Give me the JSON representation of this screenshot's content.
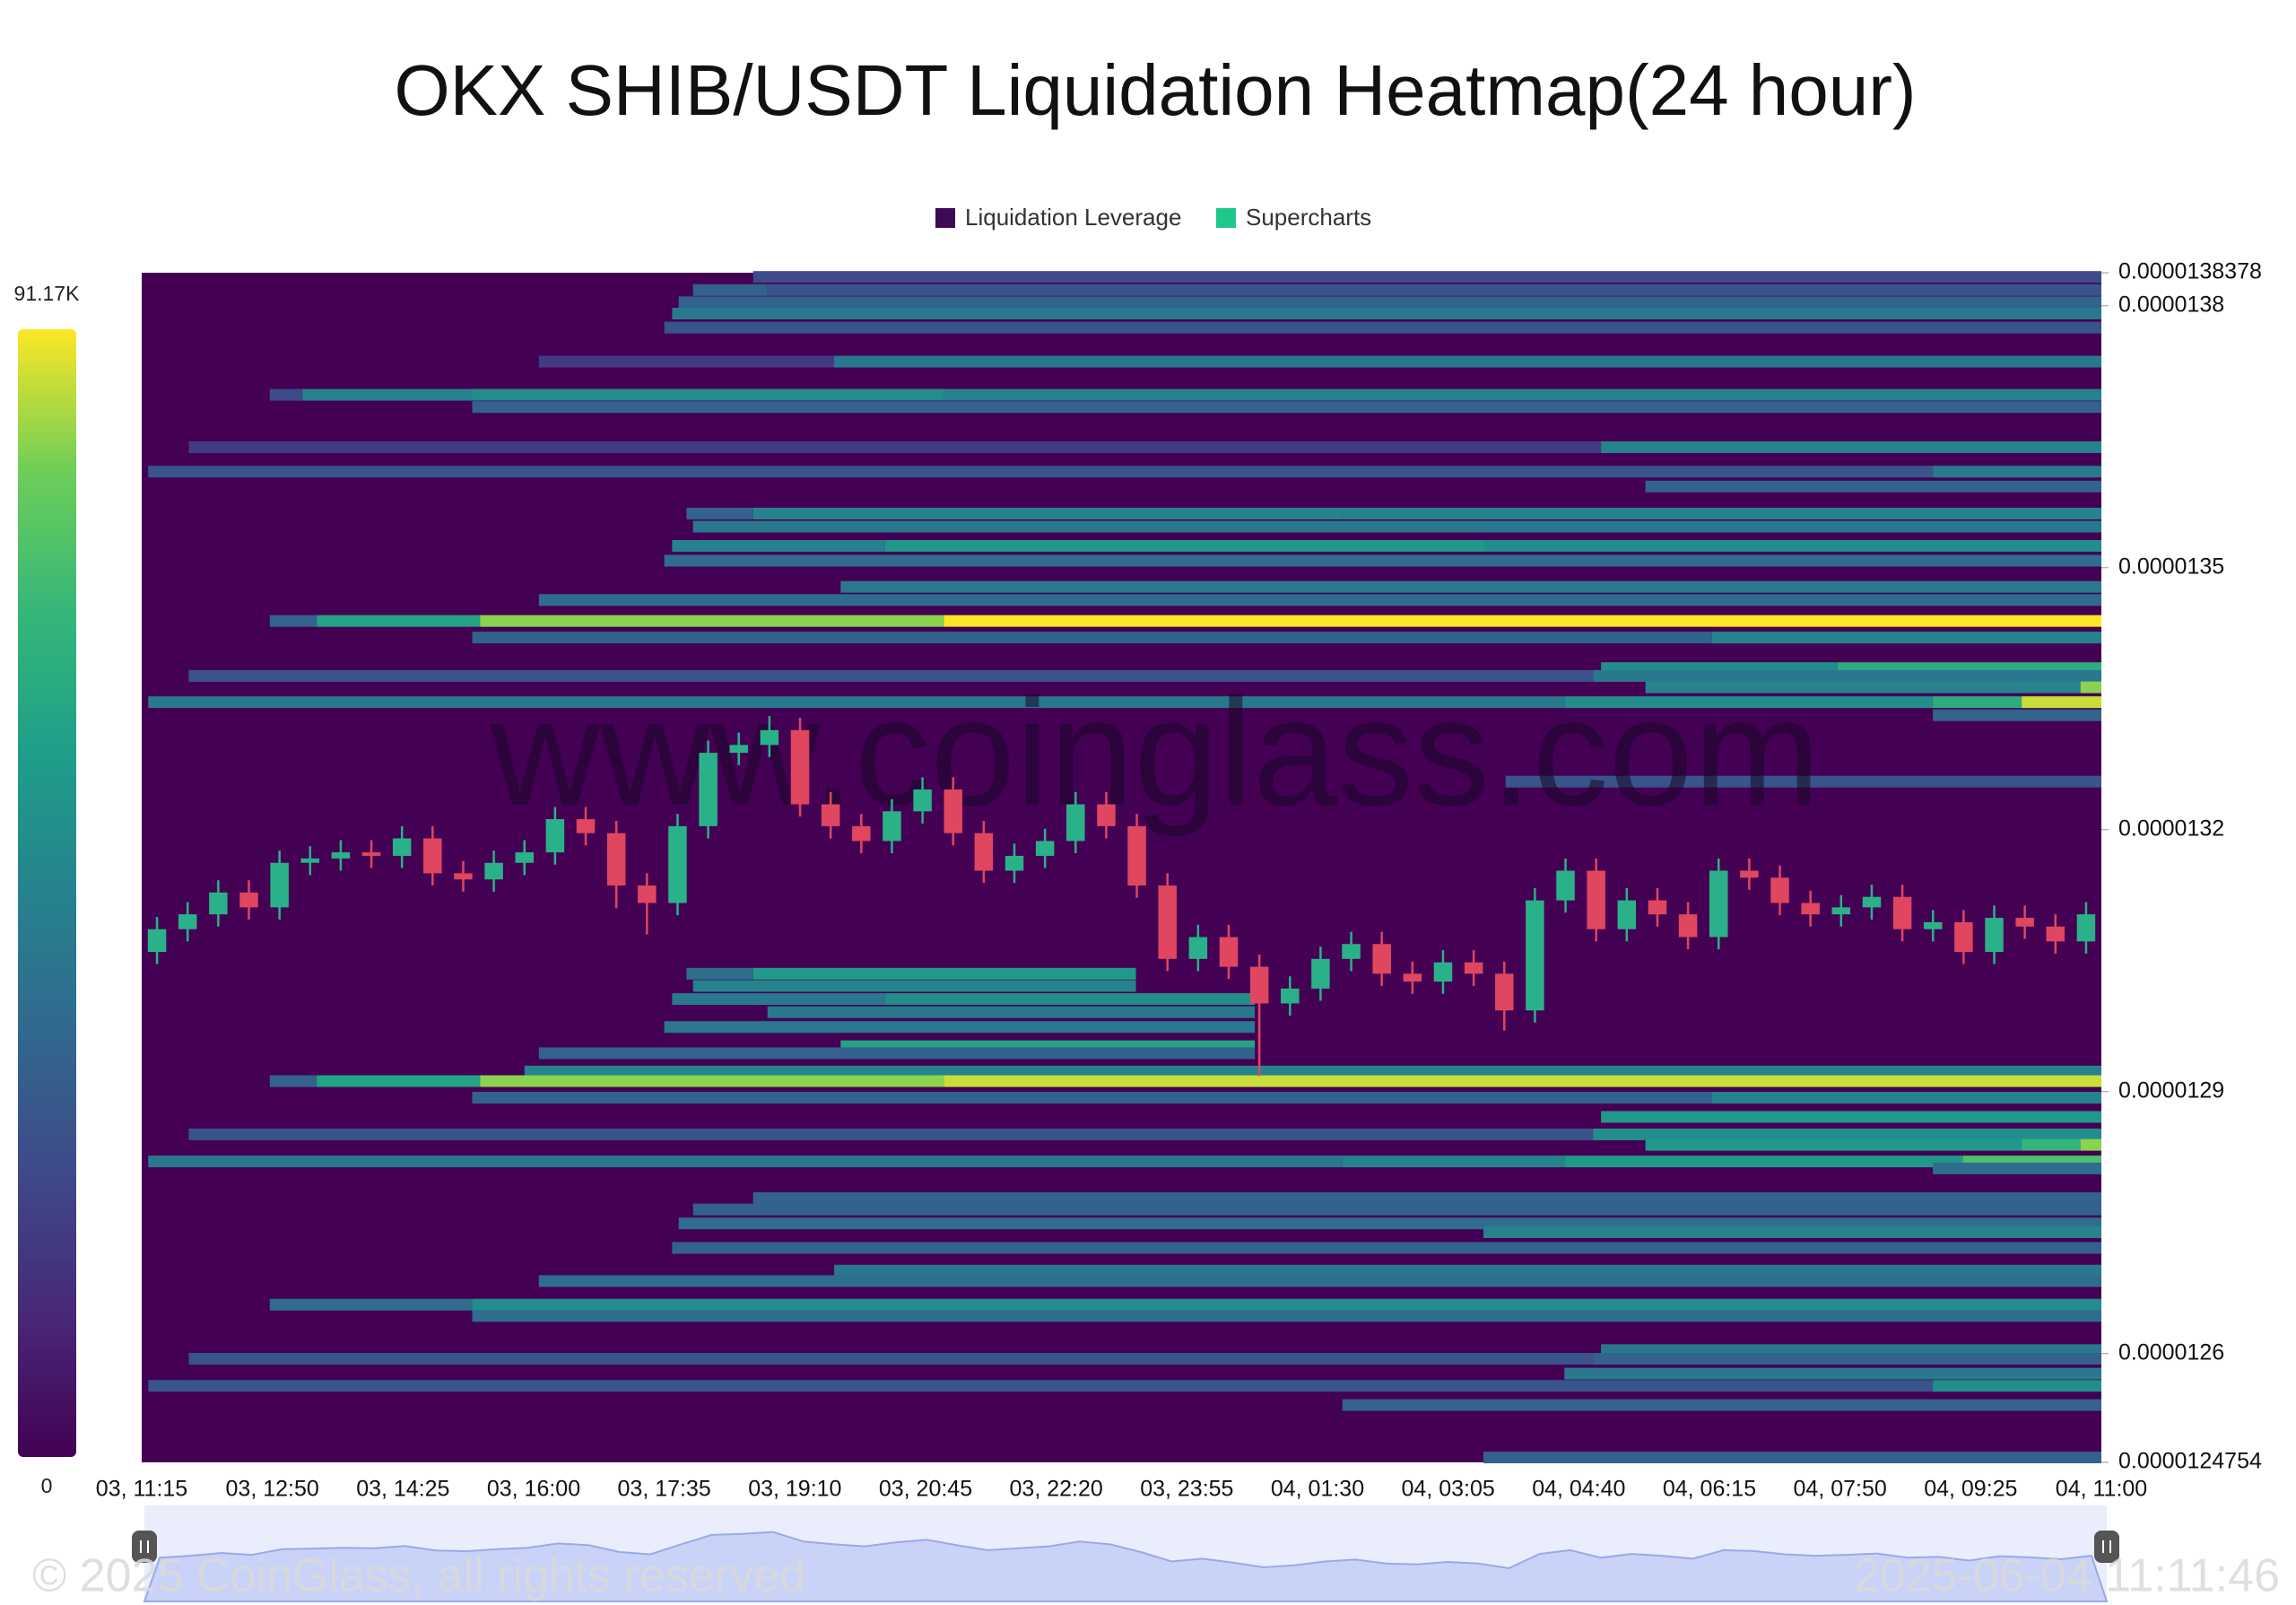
{
  "chart_data": {
    "type": "heatmap",
    "title": "OKX SHIB/USDT Liquidation Heatmap(24 hour)",
    "legend": [
      {
        "name": "Liquidation Leverage",
        "color": "#3d0a53"
      },
      {
        "name": "Supercharts",
        "color": "#1ec88a"
      }
    ],
    "watermark": "www.coinglass.com",
    "footer_left": "© 2025 CoinGlass, all rights reserved",
    "footer_right": "2025-06-04 11:11:46",
    "categories": [
      "03, 11:15",
      "03, 12:50",
      "03, 14:25",
      "03, 16:00",
      "03, 17:35",
      "03, 19:10",
      "03, 20:45",
      "03, 22:20",
      "03, 23:55",
      "04, 01:30",
      "04, 03:05",
      "04, 04:40",
      "04, 06:15",
      "04, 07:50",
      "04, 09:25",
      "04, 11:00"
    ],
    "ylim": [
      1.24754e-05,
      1.38378e-05
    ],
    "yticks": [
      1.24754e-05,
      1.26e-05,
      1.29e-05,
      1.32e-05,
      1.35e-05,
      1.38e-05,
      1.38378e-05
    ],
    "colorbar_ticks": [
      0,
      {
        "value": 91170,
        "label": "91.17K"
      }
    ],
    "bands": [
      {
        "price": 1.3833e-05,
        "segments": [
          [
            4.68,
            15,
            23000
          ]
        ]
      },
      {
        "price": 1.3818e-05,
        "segments": [
          [
            4.22,
            4.79,
            32000
          ],
          [
            4.79,
            15,
            27000
          ]
        ]
      },
      {
        "price": 1.3804e-05,
        "segments": [
          [
            4.11,
            15,
            32000
          ]
        ]
      },
      {
        "price": 1.3791e-05,
        "segments": [
          [
            4.06,
            15,
            41000
          ]
        ]
      },
      {
        "price": 1.3775e-05,
        "segments": [
          [
            4.0,
            15,
            27000
          ]
        ]
      },
      {
        "price": 1.3736e-05,
        "segments": [
          [
            3.04,
            5.3,
            18000
          ],
          [
            5.3,
            15,
            41000
          ]
        ]
      },
      {
        "price": 1.3698e-05,
        "segments": [
          [
            0.98,
            1.23,
            23000
          ],
          [
            1.23,
            2.53,
            46000
          ],
          [
            2.53,
            6.14,
            50000
          ],
          [
            6.14,
            15,
            46000
          ]
        ]
      },
      {
        "price": 1.3684e-05,
        "segments": [
          [
            2.53,
            15,
            32000
          ]
        ]
      },
      {
        "price": 1.3638e-05,
        "segments": [
          [
            0.36,
            11.17,
            18000
          ],
          [
            11.17,
            15,
            46000
          ]
        ]
      },
      {
        "price": 1.361e-05,
        "segments": [
          [
            0.05,
            13.71,
            27000
          ],
          [
            13.71,
            15,
            41000
          ]
        ]
      },
      {
        "price": 1.3593e-05,
        "segments": [
          [
            11.51,
            15,
            32000
          ]
        ]
      },
      {
        "price": 1.3562e-05,
        "segments": [
          [
            4.17,
            4.68,
            32000
          ],
          [
            4.68,
            9.19,
            46000
          ],
          [
            9.19,
            15,
            46000
          ]
        ]
      },
      {
        "price": 1.3547e-05,
        "segments": [
          [
            4.22,
            15,
            41000
          ]
        ]
      },
      {
        "price": 1.3525e-05,
        "segments": [
          [
            4.06,
            5.69,
            46000
          ],
          [
            5.69,
            10.27,
            55000
          ],
          [
            10.27,
            15,
            50000
          ]
        ]
      },
      {
        "price": 1.3508e-05,
        "segments": [
          [
            4.0,
            15,
            36000
          ]
        ]
      },
      {
        "price": 1.3478e-05,
        "segments": [
          [
            5.35,
            15,
            41000
          ]
        ]
      },
      {
        "price": 1.3463e-05,
        "segments": [
          [
            3.04,
            15,
            36000
          ]
        ]
      },
      {
        "price": 1.3439e-05,
        "segments": [
          [
            0.98,
            1.34,
            32000
          ],
          [
            1.34,
            2.59,
            59000
          ],
          [
            2.59,
            6.14,
            82000
          ],
          [
            6.14,
            15,
            91000
          ]
        ]
      },
      {
        "price": 1.342e-05,
        "segments": [
          [
            2.53,
            12.02,
            32000
          ],
          [
            12.02,
            15,
            46000
          ]
        ]
      },
      {
        "price": 1.3385e-05,
        "segments": [
          [
            11.17,
            12.98,
            50000
          ],
          [
            12.98,
            15,
            64000
          ]
        ]
      },
      {
        "price": 1.3376e-05,
        "segments": [
          [
            0.36,
            11.11,
            27000
          ],
          [
            11.11,
            15,
            41000
          ]
        ]
      },
      {
        "price": 1.3363e-05,
        "segments": [
          [
            11.51,
            14.84,
            46000
          ],
          [
            14.84,
            15,
            82000
          ]
        ]
      },
      {
        "price": 1.3346e-05,
        "segments": [
          [
            0.05,
            10.89,
            41000
          ],
          [
            10.89,
            13.71,
            50000
          ],
          [
            13.71,
            14.39,
            64000
          ],
          [
            14.39,
            15,
            87000
          ]
        ]
      },
      {
        "price": 1.3331e-05,
        "segments": [
          [
            13.71,
            15,
            32000
          ]
        ]
      },
      {
        "price": 1.3255e-05,
        "segments": [
          [
            10.44,
            15,
            27000
          ]
        ]
      },
      {
        "price": 1.3035e-05,
        "segments": [
          [
            4.17,
            4.68,
            36000
          ],
          [
            4.68,
            7.61,
            55000
          ]
        ]
      },
      {
        "price": 1.3021e-05,
        "segments": [
          [
            4.22,
            7.61,
            46000
          ]
        ]
      },
      {
        "price": 1.3006e-05,
        "segments": [
          [
            4.06,
            5.69,
            41000
          ],
          [
            5.69,
            8.52,
            50000
          ]
        ]
      },
      {
        "price": 1.2991e-05,
        "segments": [
          [
            4.79,
            8.52,
            41000
          ]
        ]
      },
      {
        "price": 1.2974e-05,
        "segments": [
          [
            4.0,
            8.52,
            41000
          ]
        ]
      },
      {
        "price": 1.2952e-05,
        "segments": [
          [
            5.35,
            8.52,
            59000
          ]
        ]
      },
      {
        "price": 1.2944e-05,
        "segments": [
          [
            3.04,
            8.52,
            32000
          ]
        ]
      },
      {
        "price": 1.2923e-05,
        "segments": [
          [
            2.93,
            15,
            46000
          ]
        ]
      },
      {
        "price": 1.2912e-05,
        "segments": [
          [
            0.98,
            1.34,
            32000
          ],
          [
            1.34,
            2.59,
            59000
          ],
          [
            2.59,
            6.14,
            82000
          ],
          [
            6.14,
            15,
            87000
          ]
        ]
      },
      {
        "price": 1.2893e-05,
        "segments": [
          [
            2.53,
            12.02,
            32000
          ],
          [
            12.02,
            15,
            46000
          ]
        ]
      },
      {
        "price": 1.2871e-05,
        "segments": [
          [
            11.17,
            15,
            55000
          ]
        ]
      },
      {
        "price": 1.2851e-05,
        "segments": [
          [
            0.36,
            11.11,
            27000
          ],
          [
            11.11,
            15,
            50000
          ]
        ]
      },
      {
        "price": 1.2839e-05,
        "segments": [
          [
            11.51,
            14.39,
            55000
          ],
          [
            14.39,
            14.84,
            68000
          ],
          [
            14.84,
            15,
            82000
          ]
        ]
      },
      {
        "price": 1.282e-05,
        "segments": [
          [
            0.05,
            9.19,
            41000
          ],
          [
            9.19,
            10.89,
            46000
          ],
          [
            10.89,
            13.94,
            55000
          ],
          [
            13.94,
            15,
            73000
          ]
        ]
      },
      {
        "price": 1.2812e-05,
        "segments": [
          [
            13.71,
            15,
            36000
          ]
        ]
      },
      {
        "price": 1.2778e-05,
        "segments": [
          [
            4.68,
            15,
            32000
          ]
        ]
      },
      {
        "price": 1.2765e-05,
        "segments": [
          [
            4.22,
            15,
            32000
          ]
        ]
      },
      {
        "price": 1.2749e-05,
        "segments": [
          [
            4.11,
            15,
            36000
          ]
        ]
      },
      {
        "price": 1.2739e-05,
        "segments": [
          [
            10.27,
            15,
            46000
          ]
        ]
      },
      {
        "price": 1.2721e-05,
        "segments": [
          [
            4.06,
            15,
            32000
          ]
        ]
      },
      {
        "price": 1.2695e-05,
        "segments": [
          [
            5.3,
            15,
            41000
          ]
        ]
      },
      {
        "price": 1.2683e-05,
        "segments": [
          [
            3.04,
            15,
            36000
          ]
        ]
      },
      {
        "price": 1.2656e-05,
        "segments": [
          [
            0.98,
            2.53,
            36000
          ],
          [
            2.53,
            6.14,
            50000
          ],
          [
            6.14,
            15,
            50000
          ]
        ]
      },
      {
        "price": 1.2643e-05,
        "segments": [
          [
            2.53,
            15,
            36000
          ]
        ]
      },
      {
        "price": 1.2604e-05,
        "segments": [
          [
            11.17,
            15,
            41000
          ]
        ]
      },
      {
        "price": 1.2594e-05,
        "segments": [
          [
            0.36,
            11.11,
            27000
          ],
          [
            11.11,
            15,
            32000
          ]
        ]
      },
      {
        "price": 1.2577e-05,
        "segments": [
          [
            10.89,
            15,
            41000
          ]
        ]
      },
      {
        "price": 1.2563e-05,
        "segments": [
          [
            0.05,
            13.71,
            27000
          ],
          [
            13.71,
            15,
            50000
          ]
        ]
      },
      {
        "price": 1.2541e-05,
        "segments": [
          [
            9.19,
            15,
            32000
          ]
        ]
      },
      {
        "price": 1.2481e-05,
        "segments": [
          [
            10.27,
            15,
            32000
          ]
        ]
      }
    ],
    "candles": {
      "up_color": "#2bb18a",
      "down_color": "#e0465f",
      "open": [
        1.306e-05,
        1.3086e-05,
        1.3103e-05,
        1.3128e-05,
        1.3111e-05,
        1.3162e-05,
        1.3167e-05,
        1.3174e-05,
        1.317e-05,
        1.319e-05,
        1.315e-05,
        1.3143e-05,
        1.3162e-05,
        1.3174e-05,
        1.3212e-05,
        1.3196e-05,
        1.3136e-05,
        1.3116e-05,
        1.3204e-05,
        1.3288e-05,
        1.3297e-05,
        1.3314e-05,
        1.3229e-05,
        1.3204e-05,
        1.3187e-05,
        1.3221e-05,
        1.3246e-05,
        1.3196e-05,
        1.3153e-05,
        1.317e-05,
        1.3187e-05,
        1.3229e-05,
        1.3204e-05,
        1.3136e-05,
        1.3052e-05,
        1.3077e-05,
        1.3043e-05,
        1.3001e-05,
        1.3018e-05,
        1.3052e-05,
        1.3069e-05,
        1.3035e-05,
        1.3026e-05,
        1.3048e-05,
        1.3035e-05,
        1.2993e-05,
        1.3119e-05,
        1.3153e-05,
        1.3086e-05,
        1.3119e-05,
        1.3103e-05,
        1.3077e-05,
        1.3153e-05,
        1.3145e-05,
        1.3116e-05,
        1.3103e-05,
        1.3111e-05,
        1.3123e-05,
        1.3086e-05,
        1.3094e-05,
        1.306e-05,
        1.3099e-05,
        1.3089e-05,
        1.3072e-05
      ],
      "high": [
        1.31e-05,
        1.3117e-05,
        1.3142e-05,
        1.3142e-05,
        1.3176e-05,
        1.3181e-05,
        1.3188e-05,
        1.3188e-05,
        1.3204e-05,
        1.3204e-05,
        1.3164e-05,
        1.3176e-05,
        1.3188e-05,
        1.3226e-05,
        1.3226e-05,
        1.321e-05,
        1.315e-05,
        1.3218e-05,
        1.3302e-05,
        1.3311e-05,
        1.333e-05,
        1.3328e-05,
        1.3243e-05,
        1.3218e-05,
        1.3235e-05,
        1.326e-05,
        1.326e-05,
        1.321e-05,
        1.3184e-05,
        1.3201e-05,
        1.3243e-05,
        1.3243e-05,
        1.3218e-05,
        1.315e-05,
        1.3091e-05,
        1.3091e-05,
        1.3057e-05,
        1.3032e-05,
        1.3066e-05,
        1.3083e-05,
        1.3083e-05,
        1.3049e-05,
        1.3062e-05,
        1.3062e-05,
        1.3049e-05,
        1.3133e-05,
        1.3167e-05,
        1.3167e-05,
        1.3133e-05,
        1.3133e-05,
        1.3117e-05,
        1.3167e-05,
        1.3167e-05,
        1.3159e-05,
        1.313e-05,
        1.3125e-05,
        1.3137e-05,
        1.3137e-05,
        1.3108e-05,
        1.3108e-05,
        1.3113e-05,
        1.3113e-05,
        1.3103e-05,
        1.3117e-05
      ],
      "low": [
        1.3046e-05,
        1.3072e-05,
        1.3089e-05,
        1.3097e-05,
        1.3097e-05,
        1.3148e-05,
        1.3153e-05,
        1.3156e-05,
        1.3156e-05,
        1.3136e-05,
        1.3129e-05,
        1.3129e-05,
        1.3148e-05,
        1.316e-05,
        1.3182e-05,
        1.311e-05,
        1.308e-05,
        1.3102e-05,
        1.319e-05,
        1.3274e-05,
        1.3283e-05,
        1.3215e-05,
        1.319e-05,
        1.3173e-05,
        1.3173e-05,
        1.3207e-05,
        1.3182e-05,
        1.3139e-05,
        1.3139e-05,
        1.3156e-05,
        1.3173e-05,
        1.319e-05,
        1.3122e-05,
        1.3038e-05,
        1.3038e-05,
        1.3029e-05,
        1.2918e-05,
        1.2987e-05,
        1.3004e-05,
        1.3038e-05,
        1.3021e-05,
        1.3012e-05,
        1.3012e-05,
        1.3021e-05,
        1.297e-05,
        1.2979e-05,
        1.3105e-05,
        1.3072e-05,
        1.3072e-05,
        1.3089e-05,
        1.3063e-05,
        1.3063e-05,
        1.3131e-05,
        1.3102e-05,
        1.3089e-05,
        1.3089e-05,
        1.3097e-05,
        1.3072e-05,
        1.3072e-05,
        1.3046e-05,
        1.3046e-05,
        1.3075e-05,
        1.3058e-05,
        1.3058e-05
      ],
      "close": [
        1.3086e-05,
        1.3103e-05,
        1.3128e-05,
        1.3111e-05,
        1.3162e-05,
        1.3167e-05,
        1.3174e-05,
        1.317e-05,
        1.319e-05,
        1.315e-05,
        1.3143e-05,
        1.3162e-05,
        1.3174e-05,
        1.3212e-05,
        1.3196e-05,
        1.3136e-05,
        1.3116e-05,
        1.3204e-05,
        1.3288e-05,
        1.3297e-05,
        1.3314e-05,
        1.3229e-05,
        1.3204e-05,
        1.3187e-05,
        1.3221e-05,
        1.3246e-05,
        1.3196e-05,
        1.3153e-05,
        1.317e-05,
        1.3187e-05,
        1.3229e-05,
        1.3204e-05,
        1.3136e-05,
        1.3052e-05,
        1.3077e-05,
        1.3043e-05,
        1.3001e-05,
        1.3018e-05,
        1.3052e-05,
        1.3069e-05,
        1.3035e-05,
        1.3026e-05,
        1.3048e-05,
        1.3035e-05,
        1.2993e-05,
        1.3119e-05,
        1.3153e-05,
        1.3086e-05,
        1.3119e-05,
        1.3103e-05,
        1.3077e-05,
        1.3153e-05,
        1.3145e-05,
        1.3116e-05,
        1.3103e-05,
        1.3111e-05,
        1.3123e-05,
        1.3086e-05,
        1.3094e-05,
        1.306e-05,
        1.3099e-05,
        1.3089e-05,
        1.3072e-05,
        1.3103e-05
      ]
    }
  }
}
